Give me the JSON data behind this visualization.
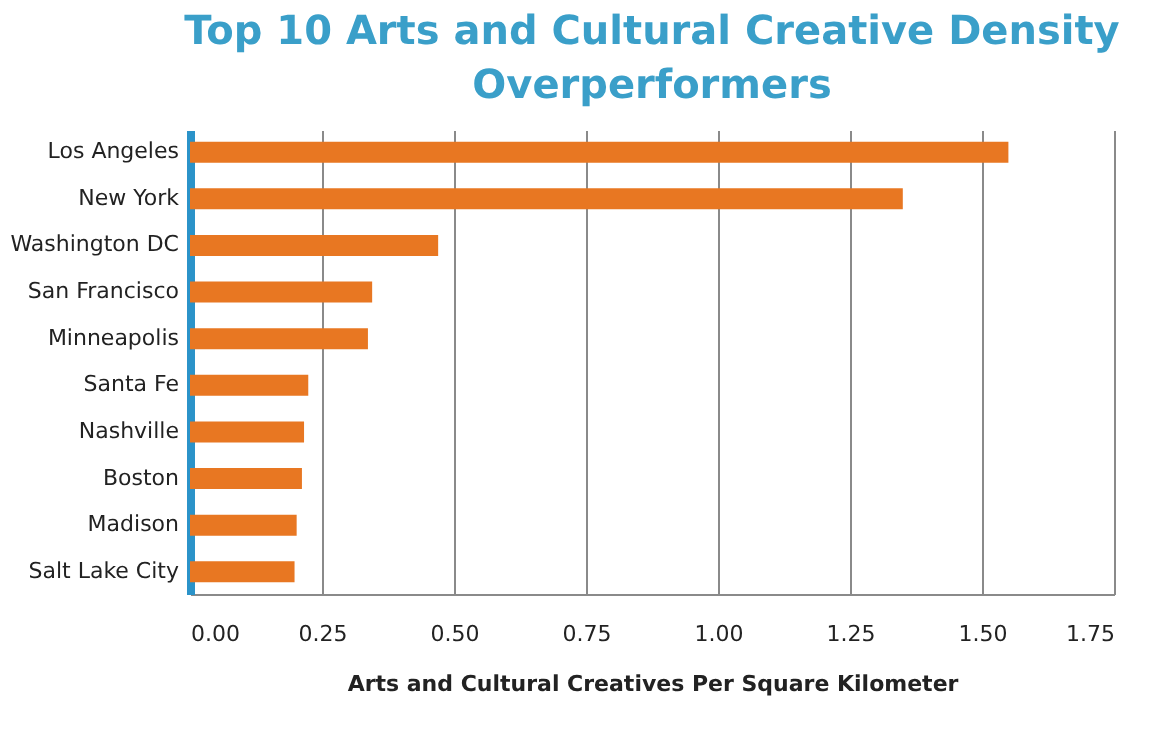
{
  "chart_data": {
    "type": "bar",
    "orientation": "horizontal",
    "title": "Top 10 Arts and Cultural Creative Density Overperformers",
    "xlabel": "Arts and Cultural Creatives Per Square Kilometer",
    "categories": [
      "Los Angeles",
      "New York",
      "Washington DC",
      "San Francisco",
      "Minneapolis",
      "Santa Fe",
      "Nashville",
      "Boston",
      "Madison",
      "Salt Lake City"
    ],
    "values": [
      1.55,
      1.35,
      0.47,
      0.345,
      0.337,
      0.224,
      0.216,
      0.212,
      0.202,
      0.198
    ],
    "color": "#e87722",
    "xlim": [
      0,
      1.75
    ],
    "xticks": [
      {
        "value": 0,
        "label": "0.00"
      },
      {
        "value": 0.25,
        "label": "0.25"
      },
      {
        "value": 0.5,
        "label": "0.50"
      },
      {
        "value": 0.75,
        "label": "0.75"
      },
      {
        "value": 1,
        "label": "1.00"
      },
      {
        "value": 1.25,
        "label": "1.25"
      },
      {
        "value": 1.5,
        "label": "1.50"
      },
      {
        "value": 1.75,
        "label": "1.75"
      }
    ],
    "grid": "x"
  }
}
